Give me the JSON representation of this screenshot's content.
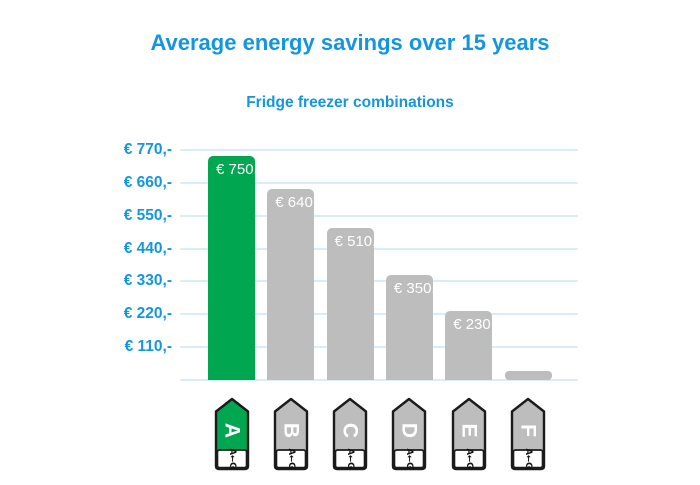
{
  "title": "Average energy savings over 15 years",
  "subtitle": "Fridge freezer combinations",
  "colors": {
    "accent_blue": "#1496df",
    "bar_green": "#00a650",
    "bar_gray": "#bdbdbd",
    "gridline_blue": "#d9ecf8",
    "bar_label_text": "#ffffff",
    "icon_border": "#1b1b1b",
    "icon_scale_text": "#111111",
    "icon_letter_text": "#ffffff"
  },
  "chart_data": {
    "type": "bar",
    "title": "Average energy savings over 15 years",
    "subtitle": "Fridge freezer combinations",
    "categories": [
      "A",
      "B",
      "C",
      "D",
      "E",
      "F"
    ],
    "values": [
      750,
      640,
      510,
      350,
      230,
      30
    ],
    "bar_labels": [
      "€ 750,-",
      "€ 640,-",
      "€ 510,-",
      "€ 350,-",
      "€ 230,-",
      ""
    ],
    "bar_colors": [
      "#00a650",
      "#bdbdbd",
      "#bdbdbd",
      "#bdbdbd",
      "#bdbdbd",
      "#bdbdbd"
    ],
    "y_ticks": [
      {
        "value": 770,
        "label": "€ 770,-"
      },
      {
        "value": 660,
        "label": "€ 660,-"
      },
      {
        "value": 550,
        "label": "€ 550,-"
      },
      {
        "value": 440,
        "label": "€ 440,-"
      },
      {
        "value": 330,
        "label": "€ 330,-"
      },
      {
        "value": 220,
        "label": "€ 220,-"
      },
      {
        "value": 110,
        "label": "€ 110,-"
      }
    ],
    "ylim": [
      0,
      770
    ],
    "xlabel": "",
    "ylabel": "",
    "grid": true,
    "legend": false,
    "x_axis_marker_type": "eu-energy-label-tag",
    "energy_scale_text": "A←G"
  }
}
